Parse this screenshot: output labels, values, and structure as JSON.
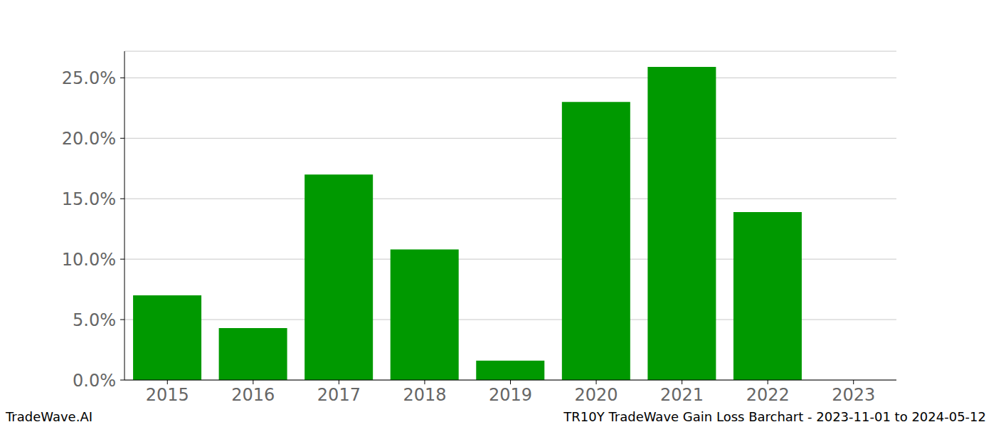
{
  "chart_data": {
    "type": "bar",
    "title": "TR10Y TradeWave Gain Loss Barchart - 2023-11-01 to 2024-05-12",
    "source": "TradeWave.AI",
    "categories": [
      "2015",
      "2016",
      "2017",
      "2018",
      "2019",
      "2020",
      "2021",
      "2022",
      "2023"
    ],
    "values": [
      7.0,
      4.3,
      17.0,
      10.8,
      1.6,
      23.0,
      25.9,
      13.9,
      0
    ],
    "color": "#009900",
    "ylim": [
      0,
      27.2
    ],
    "yticks": [
      {
        "value": 0,
        "label": "0.0%"
      },
      {
        "value": 5,
        "label": "5.0%"
      },
      {
        "value": 10,
        "label": "10.0%"
      },
      {
        "value": 15,
        "label": "15.0%"
      },
      {
        "value": 20,
        "label": "20.0%"
      },
      {
        "value": 25,
        "label": "25.0%"
      }
    ],
    "grid": true
  }
}
